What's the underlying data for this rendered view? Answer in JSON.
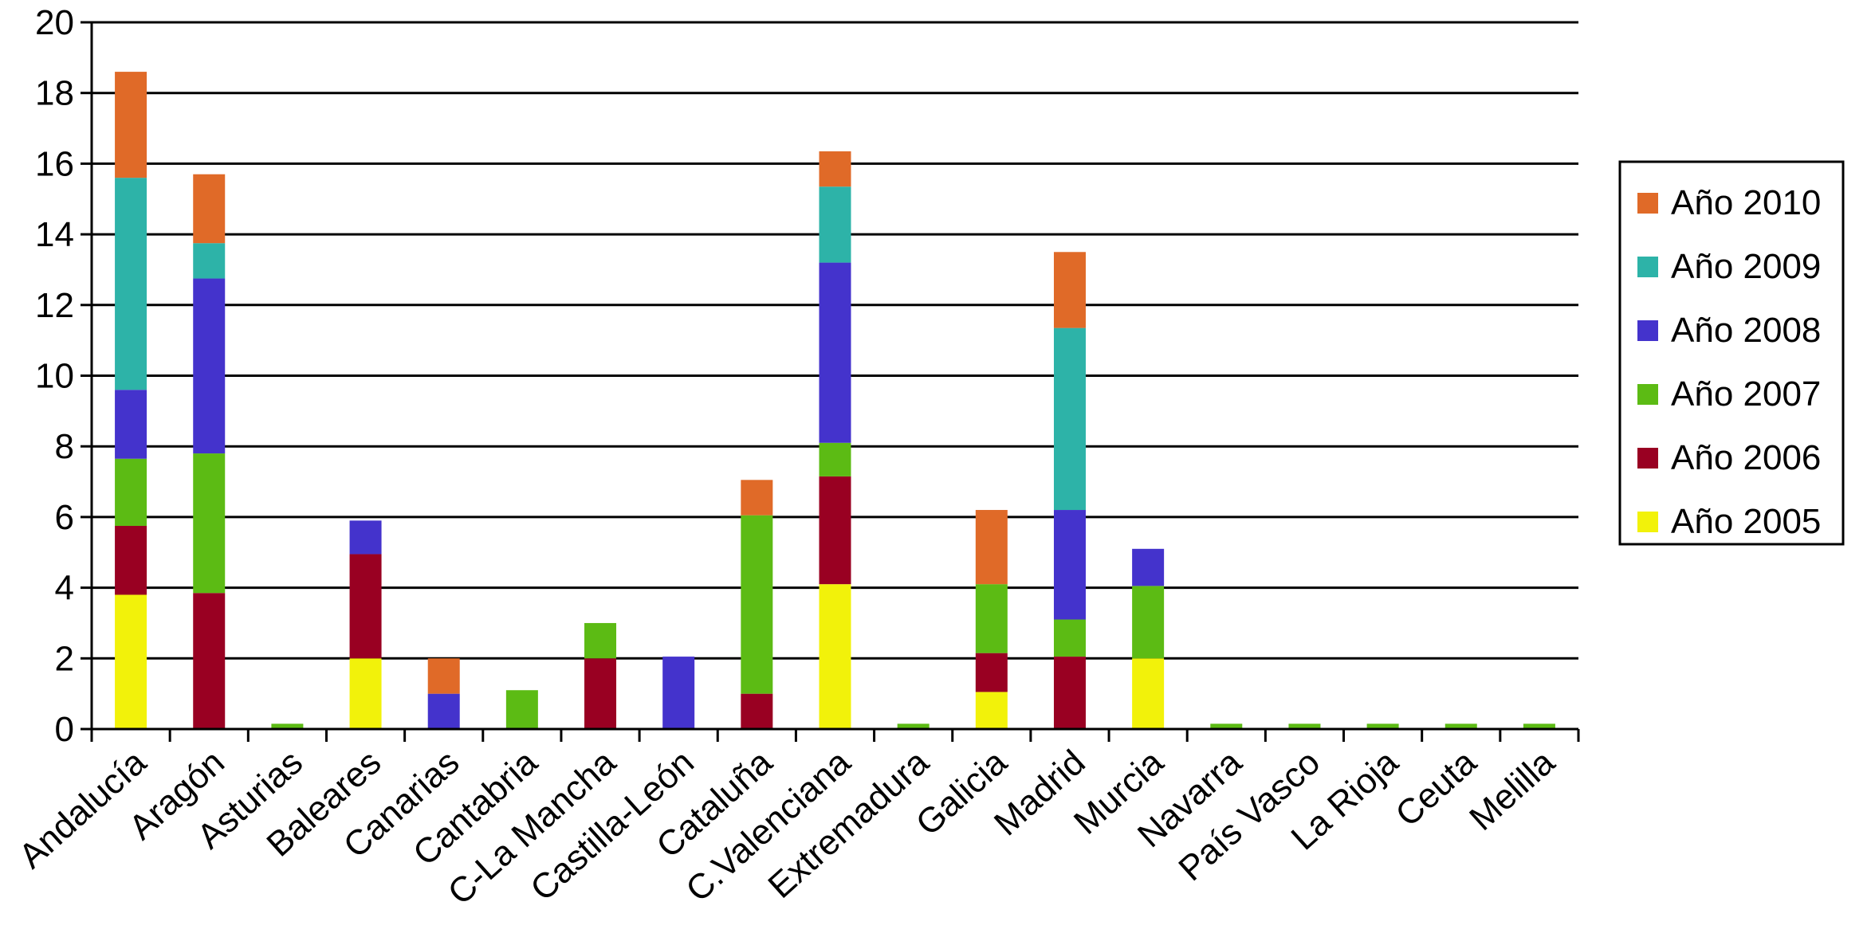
{
  "chart_data": {
    "type": "bar",
    "stacked": true,
    "title": "",
    "xlabel": "",
    "ylabel": "",
    "ylim": [
      0,
      20
    ],
    "yticks": [
      0,
      2,
      4,
      6,
      8,
      10,
      12,
      14,
      16,
      18,
      20
    ],
    "grid": "horizontal",
    "legend_position": "right",
    "categories": [
      "Andalucía",
      "Aragón",
      "Asturias",
      "Baleares",
      "Canarias",
      "Cantabria",
      "C-La Mancha",
      "Castilla-León",
      "Cataluña",
      "C.Valenciana",
      "Extremadura",
      "Galicia",
      "Madrid",
      "Murcia",
      "Navarra",
      "País Vasco",
      "La Rioja",
      "Ceuta",
      "Melilla"
    ],
    "series": [
      {
        "name": "Año 2005",
        "color": "#f2f20a",
        "values": [
          3.8,
          0,
          0,
          2,
          0,
          0,
          0,
          0,
          0,
          4.1,
          0,
          1.05,
          0,
          2,
          0,
          0,
          0,
          0,
          0
        ]
      },
      {
        "name": "Año 2006",
        "color": "#990022",
        "values": [
          1.95,
          3.85,
          0,
          2.95,
          0,
          0,
          2,
          0,
          1,
          3.05,
          0,
          1.1,
          2.05,
          0,
          0,
          0,
          0,
          0,
          0
        ]
      },
      {
        "name": "Año 2007",
        "color": "#5cbb14",
        "values": [
          1.9,
          3.95,
          0.15,
          0,
          0,
          1.1,
          1,
          0,
          5.05,
          0.95,
          0.15,
          1.95,
          1.05,
          2.05,
          0.15,
          0.15,
          0.15,
          0.15,
          0.15
        ]
      },
      {
        "name": "Año 2008",
        "color": "#4433cc",
        "values": [
          1.95,
          4.95,
          0,
          0.95,
          1,
          0,
          0,
          2.05,
          0,
          5.1,
          0,
          0,
          3.1,
          1.05,
          0,
          0,
          0,
          0,
          0
        ]
      },
      {
        "name": "Año 2009",
        "color": "#2db3a8",
        "values": [
          6,
          1,
          0,
          0,
          0,
          0,
          0,
          0,
          0,
          2.15,
          0,
          0,
          5.15,
          0,
          0,
          0,
          0,
          0,
          0
        ]
      },
      {
        "name": "Año 2010",
        "color": "#e06a28",
        "values": [
          3,
          1.95,
          0,
          0,
          1,
          0,
          0,
          0,
          1,
          1,
          0,
          2.1,
          2.15,
          0,
          0,
          0,
          0,
          0,
          0
        ]
      }
    ],
    "legend_order": [
      "Año 2010",
      "Año 2009",
      "Año 2008",
      "Año 2007",
      "Año 2006",
      "Año 2005"
    ]
  }
}
